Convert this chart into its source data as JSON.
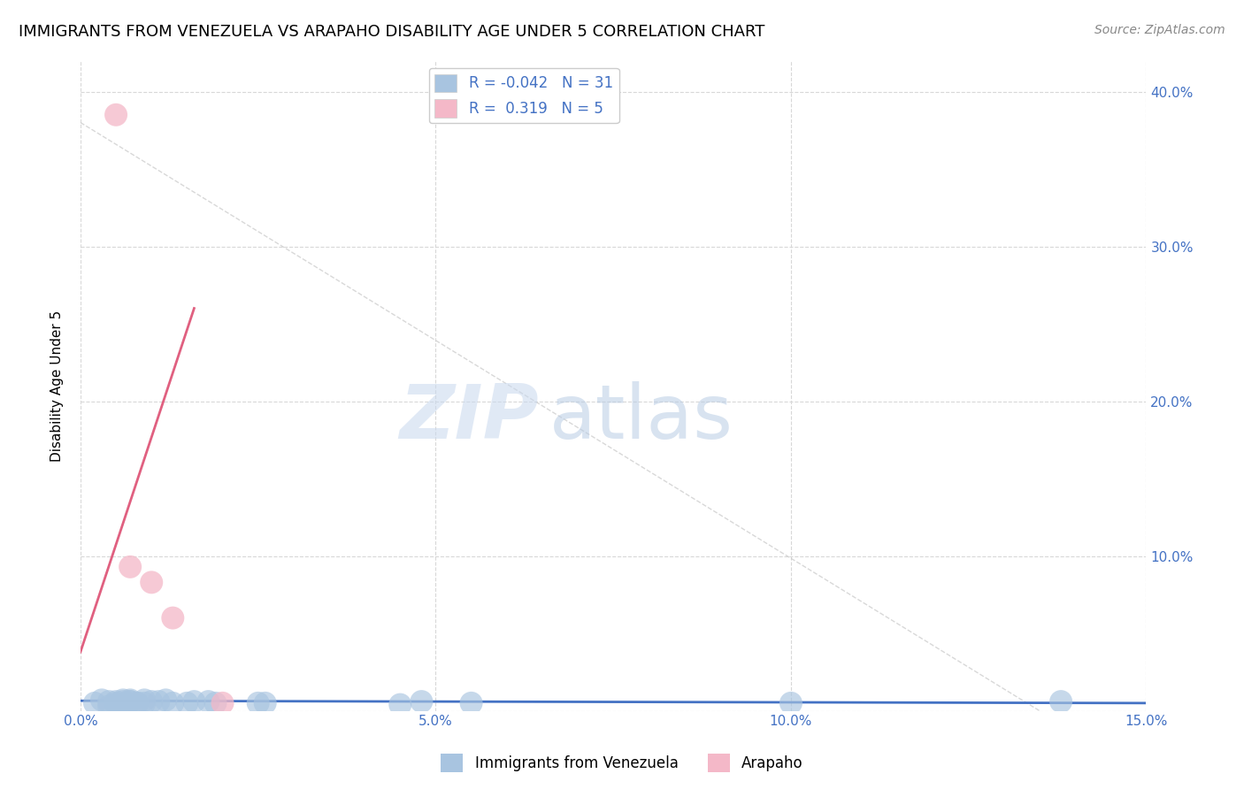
{
  "title": "IMMIGRANTS FROM VENEZUELA VS ARAPAHO DISABILITY AGE UNDER 5 CORRELATION CHART",
  "source": "Source: ZipAtlas.com",
  "ylabel": "Disability Age Under 5",
  "xlim": [
    0.0,
    0.15
  ],
  "ylim": [
    0.0,
    0.42
  ],
  "xticks": [
    0.0,
    0.05,
    0.1,
    0.15
  ],
  "yticks": [
    0.0,
    0.1,
    0.2,
    0.3,
    0.4
  ],
  "xtick_labels": [
    "0.0%",
    "5.0%",
    "10.0%",
    "15.0%"
  ],
  "right_ytick_labels": [
    "",
    "10.0%",
    "20.0%",
    "30.0%",
    "40.0%"
  ],
  "blue_scatter_x": [
    0.002,
    0.003,
    0.004,
    0.004,
    0.005,
    0.005,
    0.005,
    0.006,
    0.006,
    0.007,
    0.007,
    0.007,
    0.008,
    0.008,
    0.009,
    0.009,
    0.01,
    0.011,
    0.012,
    0.013,
    0.015,
    0.016,
    0.018,
    0.019,
    0.025,
    0.026,
    0.045,
    0.048,
    0.055,
    0.1,
    0.138
  ],
  "blue_scatter_y": [
    0.005,
    0.007,
    0.003,
    0.006,
    0.006,
    0.005,
    0.004,
    0.007,
    0.006,
    0.006,
    0.007,
    0.006,
    0.005,
    0.005,
    0.005,
    0.007,
    0.006,
    0.006,
    0.007,
    0.005,
    0.005,
    0.006,
    0.006,
    0.005,
    0.005,
    0.005,
    0.004,
    0.006,
    0.005,
    0.005,
    0.006
  ],
  "pink_scatter_x": [
    0.005,
    0.007,
    0.01,
    0.013,
    0.02
  ],
  "pink_scatter_y": [
    0.385,
    0.093,
    0.083,
    0.06,
    0.005
  ],
  "blue_line_x": [
    0.0,
    0.15
  ],
  "blue_line_y": [
    0.0065,
    0.005
  ],
  "pink_line_x": [
    0.0,
    0.016
  ],
  "pink_line_y": [
    0.038,
    0.26
  ],
  "grey_line_x": [
    0.0,
    0.135
  ],
  "grey_line_y": [
    0.38,
    0.0
  ],
  "blue_color": "#a8c4e0",
  "blue_line_color": "#4472c4",
  "pink_color": "#f4b8c8",
  "pink_line_color": "#e06080",
  "grey_line_color": "#c8c8c8",
  "legend_R_blue": "-0.042",
  "legend_N_blue": "31",
  "legend_R_pink": "0.319",
  "legend_N_pink": "5",
  "legend_label_blue": "Immigrants from Venezuela",
  "legend_label_pink": "Arapaho",
  "watermark_zip": "ZIP",
  "watermark_atlas": "atlas",
  "title_fontsize": 13,
  "axis_label_fontsize": 11,
  "tick_fontsize": 11,
  "legend_fontsize": 12
}
